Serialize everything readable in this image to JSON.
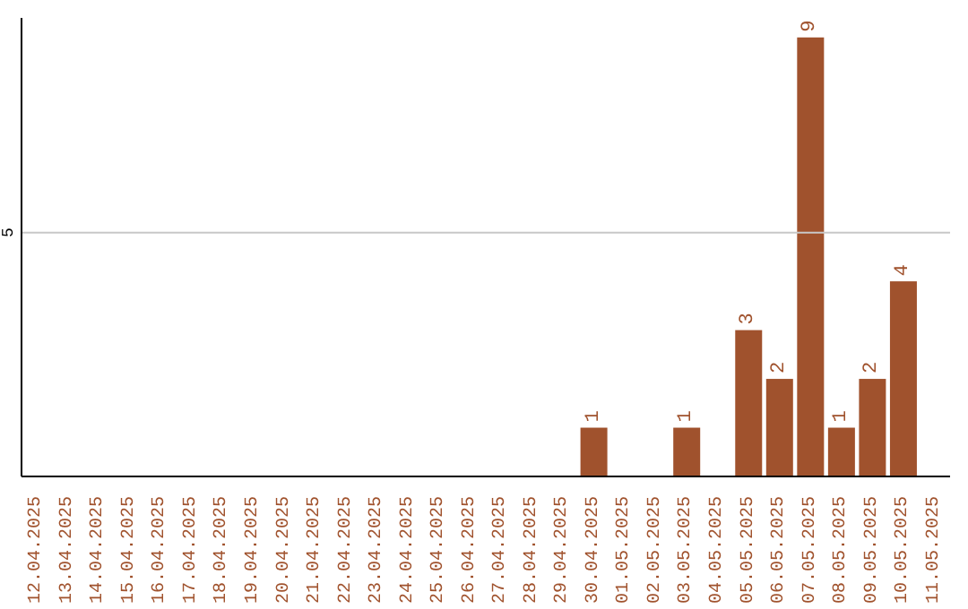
{
  "chart_data": {
    "type": "bar",
    "categories": [
      "12.04.2025",
      "13.04.2025",
      "14.04.2025",
      "15.04.2025",
      "16.04.2025",
      "17.04.2025",
      "18.04.2025",
      "19.04.2025",
      "20.04.2025",
      "21.04.2025",
      "22.04.2025",
      "23.04.2025",
      "24.04.2025",
      "25.04.2025",
      "26.04.2025",
      "27.04.2025",
      "28.04.2025",
      "29.04.2025",
      "30.04.2025",
      "01.05.2025",
      "02.05.2025",
      "03.05.2025",
      "04.05.2025",
      "05.05.2025",
      "06.05.2025",
      "07.05.2025",
      "08.05.2025",
      "09.05.2025",
      "10.05.2025",
      "11.05.2025"
    ],
    "values": [
      null,
      null,
      null,
      null,
      null,
      null,
      null,
      null,
      null,
      null,
      null,
      null,
      null,
      null,
      null,
      null,
      null,
      null,
      1,
      null,
      null,
      1,
      null,
      3,
      2,
      9,
      1,
      2,
      4,
      null
    ],
    "data_labels": true,
    "color": "#a0522d",
    "ylim": [
      0,
      9.4
    ],
    "yticks": [
      5
    ],
    "grid": "y"
  }
}
